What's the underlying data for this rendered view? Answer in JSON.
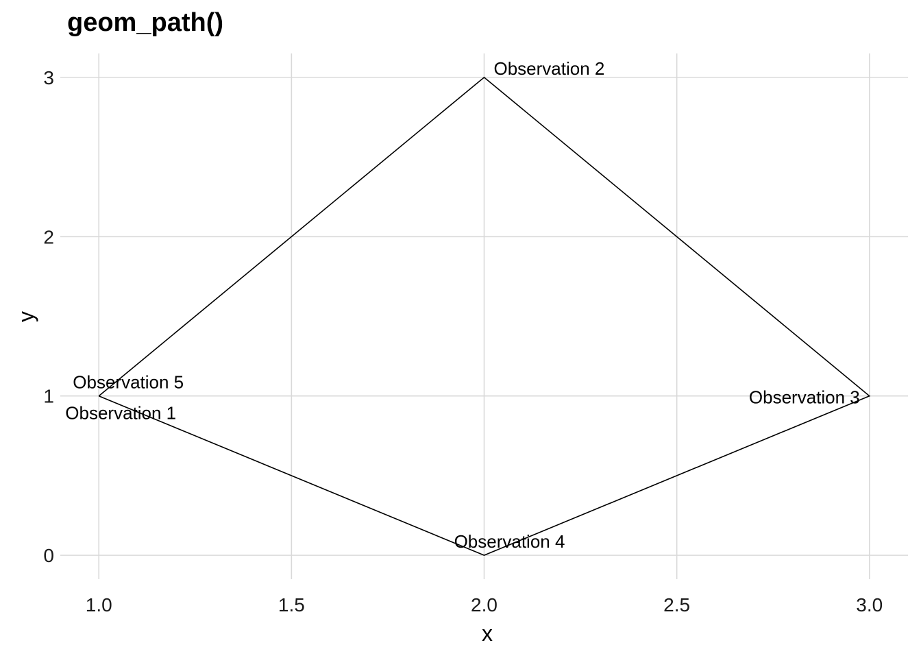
{
  "chart_data": {
    "type": "line",
    "geom": "path",
    "title": "geom_path()",
    "xlabel": "x",
    "ylabel": "y",
    "xlim": [
      0.9,
      3.1
    ],
    "ylim": [
      -0.15,
      3.15
    ],
    "x_ticks": [
      1.0,
      1.5,
      2.0,
      2.5,
      3.0
    ],
    "x_tick_labels": [
      "1.0",
      "1.5",
      "2.0",
      "2.5",
      "3.0"
    ],
    "y_ticks": [
      0,
      1,
      2,
      3
    ],
    "y_tick_labels": [
      "0",
      "1",
      "2",
      "3"
    ],
    "grid": true,
    "legend": "none",
    "line_color": "#000000",
    "grid_color": "#d9d9d9",
    "points": [
      {
        "x": 1,
        "y": 1,
        "label": "Observation 1",
        "label_pos": "below"
      },
      {
        "x": 2,
        "y": 3,
        "label": "Observation 2",
        "label_pos": "above-right"
      },
      {
        "x": 3,
        "y": 1,
        "label": "Observation 3",
        "label_pos": "left"
      },
      {
        "x": 2,
        "y": 0,
        "label": "Observation 4",
        "label_pos": "above"
      },
      {
        "x": 1,
        "y": 1,
        "label": "Observation 5",
        "label_pos": "above"
      }
    ]
  }
}
